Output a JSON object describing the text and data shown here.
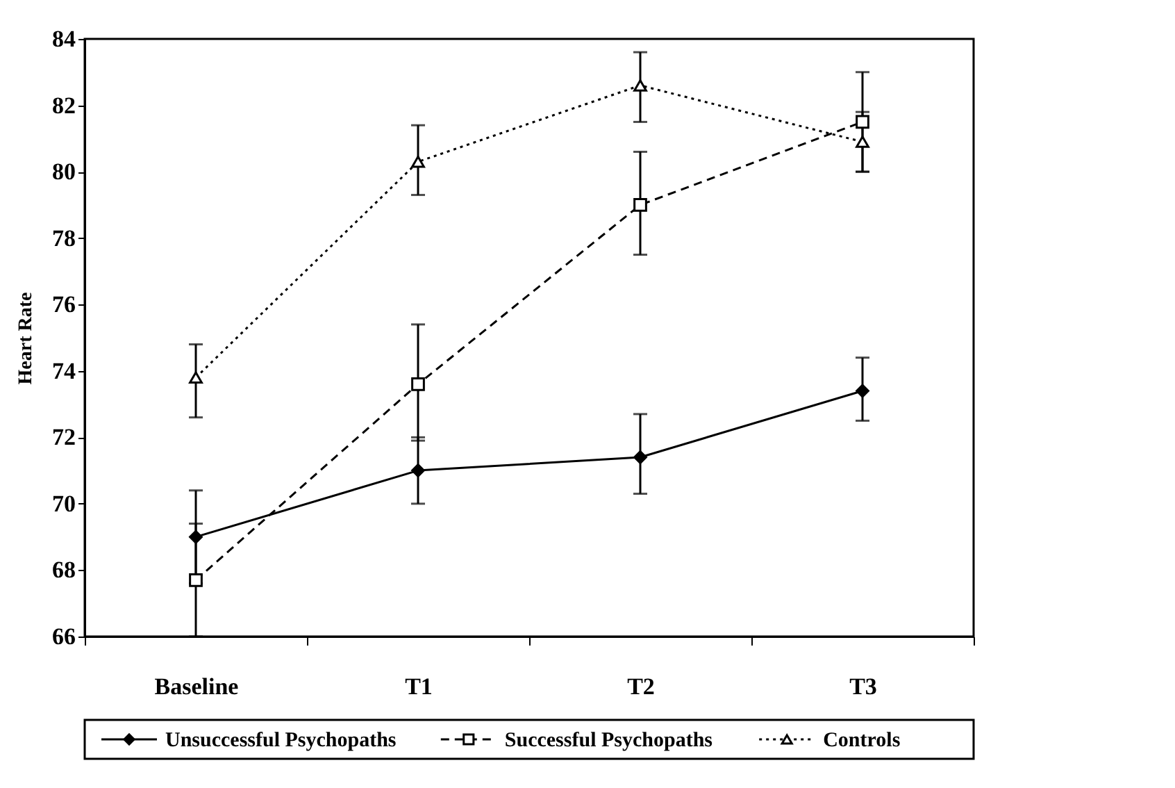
{
  "chart_data": {
    "type": "line",
    "ylabel": "Heart Rate",
    "categories": [
      "Baseline",
      "T1",
      "T2",
      "T3"
    ],
    "ylim": [
      66,
      84
    ],
    "yticks": [
      66,
      68,
      70,
      72,
      74,
      76,
      78,
      80,
      82,
      84
    ],
    "grid": false,
    "legend": "bottom",
    "series": [
      {
        "name": "Unsuccessful Psychopaths",
        "color": "#000000",
        "marker": "diamond",
        "line_style": "solid",
        "values": [
          69.0,
          71.0,
          71.4,
          73.4
        ],
        "errors": [
          [
            67.6,
            70.4
          ],
          [
            70.0,
            72.0
          ],
          [
            70.3,
            72.7
          ],
          [
            72.5,
            74.4
          ]
        ]
      },
      {
        "name": "Successful Psychopaths",
        "color": "#000000",
        "marker": "square",
        "line_style": "dashed",
        "values": [
          67.7,
          73.6,
          79.0,
          81.5
        ],
        "errors": [
          [
            66.0,
            69.4
          ],
          [
            71.9,
            75.4
          ],
          [
            77.5,
            80.6
          ],
          [
            80.0,
            83.0
          ]
        ]
      },
      {
        "name": "Controls",
        "color": "#000000",
        "marker": "triangle",
        "line_style": "dotted",
        "values": [
          73.8,
          80.3,
          82.6,
          80.9
        ],
        "errors": [
          [
            72.6,
            74.8
          ],
          [
            79.3,
            81.4
          ],
          [
            81.5,
            83.6
          ],
          [
            80.0,
            81.8
          ]
        ]
      }
    ]
  }
}
